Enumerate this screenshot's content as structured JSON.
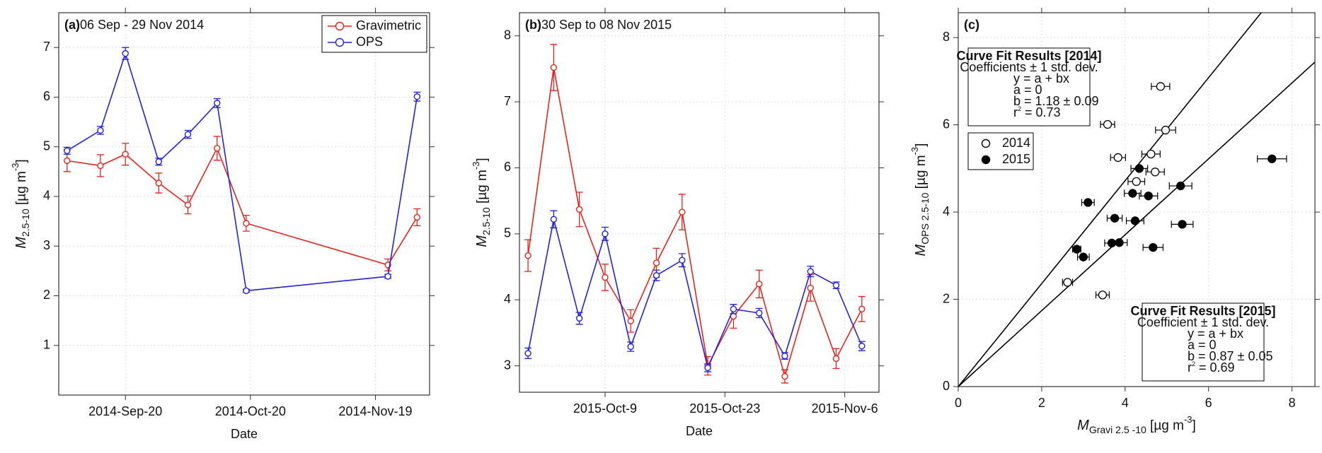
{
  "chart_data": [
    {
      "type": "line",
      "panel_label": "(a)",
      "title": "06 Sep - 29 Nov 2014",
      "x": [
        "2014-09-06",
        "2014-09-14",
        "2014-09-20",
        "2014-09-28",
        "2014-10-05",
        "2014-10-12",
        "2014-10-19",
        "2014-11-22",
        "2014-11-29"
      ],
      "series": [
        {
          "name": "Gravimetric",
          "color": "#e8231c",
          "values": [
            4.72,
            4.62,
            4.85,
            4.27,
            3.83,
            4.97,
            3.46,
            2.62,
            3.58
          ],
          "errors": [
            0.22,
            0.22,
            0.22,
            0.2,
            0.18,
            0.24,
            0.16,
            0.12,
            0.17
          ]
        },
        {
          "name": "OPS",
          "color": "#2222e0",
          "values": [
            4.92,
            5.33,
            6.88,
            4.7,
            5.25,
            5.88,
            2.1,
            2.39,
            6.01
          ],
          "errors": [
            0.07,
            0.08,
            0.12,
            0.07,
            0.08,
            0.09,
            0.03,
            0.04,
            0.09
          ]
        }
      ],
      "xlim": [
        "2014-09-04",
        "2014-12-02"
      ],
      "xticks": [
        {
          "value": "2014-09-20",
          "label": "2014-Sep-20"
        },
        {
          "value": "2014-10-20",
          "label": "2014-Oct-20"
        },
        {
          "value": "2014-11-19",
          "label": "2014-Nov-19"
        }
      ],
      "ylim": [
        0,
        7.7
      ],
      "yticks": [
        1,
        2,
        3,
        4,
        5,
        6,
        7
      ],
      "xlabel": "Date",
      "ylabel": {
        "symbol": "M",
        "sub": "2.5-10",
        "unit": " [µg m",
        "sup": "-3",
        "end": "]"
      },
      "grid": true,
      "legend": "upper right"
    },
    {
      "type": "line",
      "panel_label": "(b)",
      "title": "30 Sep to 08 Nov 2015",
      "x": [
        "2015-09-30",
        "2015-10-03",
        "2015-10-06",
        "2015-10-09",
        "2015-10-12",
        "2015-10-15",
        "2015-10-18",
        "2015-10-21",
        "2015-10-24",
        "2015-10-27",
        "2015-10-30",
        "2015-11-02",
        "2015-11-05",
        "2015-11-08"
      ],
      "series": [
        {
          "name": "Gravimetric",
          "color": "#e8231c",
          "values": [
            4.67,
            7.52,
            5.37,
            4.34,
            3.68,
            4.56,
            5.33,
            3.0,
            3.75,
            4.24,
            2.84,
            4.18,
            3.11,
            3.86
          ],
          "errors": [
            0.24,
            0.35,
            0.26,
            0.2,
            0.17,
            0.22,
            0.27,
            0.14,
            0.18,
            0.21,
            0.1,
            0.2,
            0.15,
            0.19
          ]
        },
        {
          "name": "OPS",
          "color": "#2222e0",
          "values": [
            3.19,
            5.22,
            3.72,
            5.0,
            3.29,
            4.37,
            4.6,
            2.97,
            3.86,
            3.8,
            3.15,
            4.43,
            4.22,
            3.3
          ],
          "errors": [
            0.08,
            0.13,
            0.09,
            0.1,
            0.07,
            0.08,
            0.1,
            0.06,
            0.07,
            0.07,
            0.05,
            0.08,
            0.05,
            0.07
          ]
        }
      ],
      "xlim": [
        "2015-09-29",
        "2015-11-10"
      ],
      "xticks": [
        {
          "value": "2015-10-09",
          "label": "2015-Oct-9"
        },
        {
          "value": "2015-10-23",
          "label": "2015-Oct-23"
        },
        {
          "value": "2015-11-06",
          "label": "2015-Nov-6"
        }
      ],
      "ylim": [
        2.6,
        8.35
      ],
      "yticks": [
        3,
        4,
        5,
        6,
        7,
        8
      ],
      "xlabel": "Date",
      "ylabel": {
        "symbol": "M",
        "sub": "2.5-10",
        "unit": " [µg m",
        "sup": "-3",
        "end": "]"
      },
      "grid": true
    },
    {
      "type": "scatter",
      "panel_label": "(c)",
      "series": [
        {
          "name": "2014",
          "color": "#000000",
          "filled": false,
          "x": [
            4.72,
            4.62,
            4.85,
            4.27,
            3.83,
            4.97,
            3.46,
            2.62,
            3.58
          ],
          "values": [
            4.92,
            5.33,
            6.88,
            4.7,
            5.25,
            5.88,
            2.1,
            2.39,
            6.01
          ],
          "xerr": [
            0.22,
            0.22,
            0.22,
            0.2,
            0.18,
            0.24,
            0.16,
            0.12,
            0.17
          ]
        },
        {
          "name": "2015",
          "color": "#000000",
          "filled": true,
          "x": [
            4.67,
            7.52,
            5.37,
            4.34,
            3.68,
            4.56,
            5.33,
            3.0,
            3.75,
            4.24,
            2.84,
            4.18,
            3.11,
            3.86
          ],
          "values": [
            3.19,
            5.22,
            3.72,
            5.0,
            3.29,
            4.37,
            4.6,
            2.97,
            3.86,
            3.8,
            3.15,
            4.43,
            4.22,
            3.3
          ],
          "xerr": [
            0.24,
            0.35,
            0.26,
            0.2,
            0.17,
            0.22,
            0.27,
            0.14,
            0.18,
            0.21,
            0.1,
            0.2,
            0.15,
            0.19
          ]
        }
      ],
      "fit_lines": [
        {
          "slope": 1.18
        },
        {
          "slope": 0.87
        }
      ],
      "annotations": [
        {
          "position": "upper left",
          "title": "Curve Fit Results [2014]",
          "lines": [
            "Coefficients ± 1 std. dev.",
            "y = a + bx",
            "a = 0",
            "b = 1.18 ± 0.09"
          ],
          "r2": {
            "pre": "r",
            "sup": "2",
            "post": " = 0.73"
          }
        },
        {
          "position": "lower right",
          "title": "Curve Fit Results [2015]",
          "lines": [
            "Coefficient ± 1 std. dev.",
            "y = a + bx",
            "a = 0",
            "b = 0.87 ± 0.05"
          ],
          "r2": {
            "pre": "r",
            "sup": "2",
            "post": " = 0.69"
          }
        }
      ],
      "xlim": [
        0,
        8.55
      ],
      "xticks": [
        0,
        2,
        4,
        6,
        8
      ],
      "ylim": [
        0,
        8.57
      ],
      "yticks": [
        0,
        2,
        4,
        6,
        8
      ],
      "xlabel": {
        "symbol": "M",
        "sub": "Gravi 2.5 -10",
        "unit": " [µg m",
        "sup": "-3",
        "end": "]"
      },
      "ylabel": {
        "symbol": "M",
        "sub": "OPS 2.5-10",
        "unit": " [µg m",
        "sup": "-3",
        "end": "]"
      },
      "grid": true,
      "legend": "upper left"
    }
  ]
}
